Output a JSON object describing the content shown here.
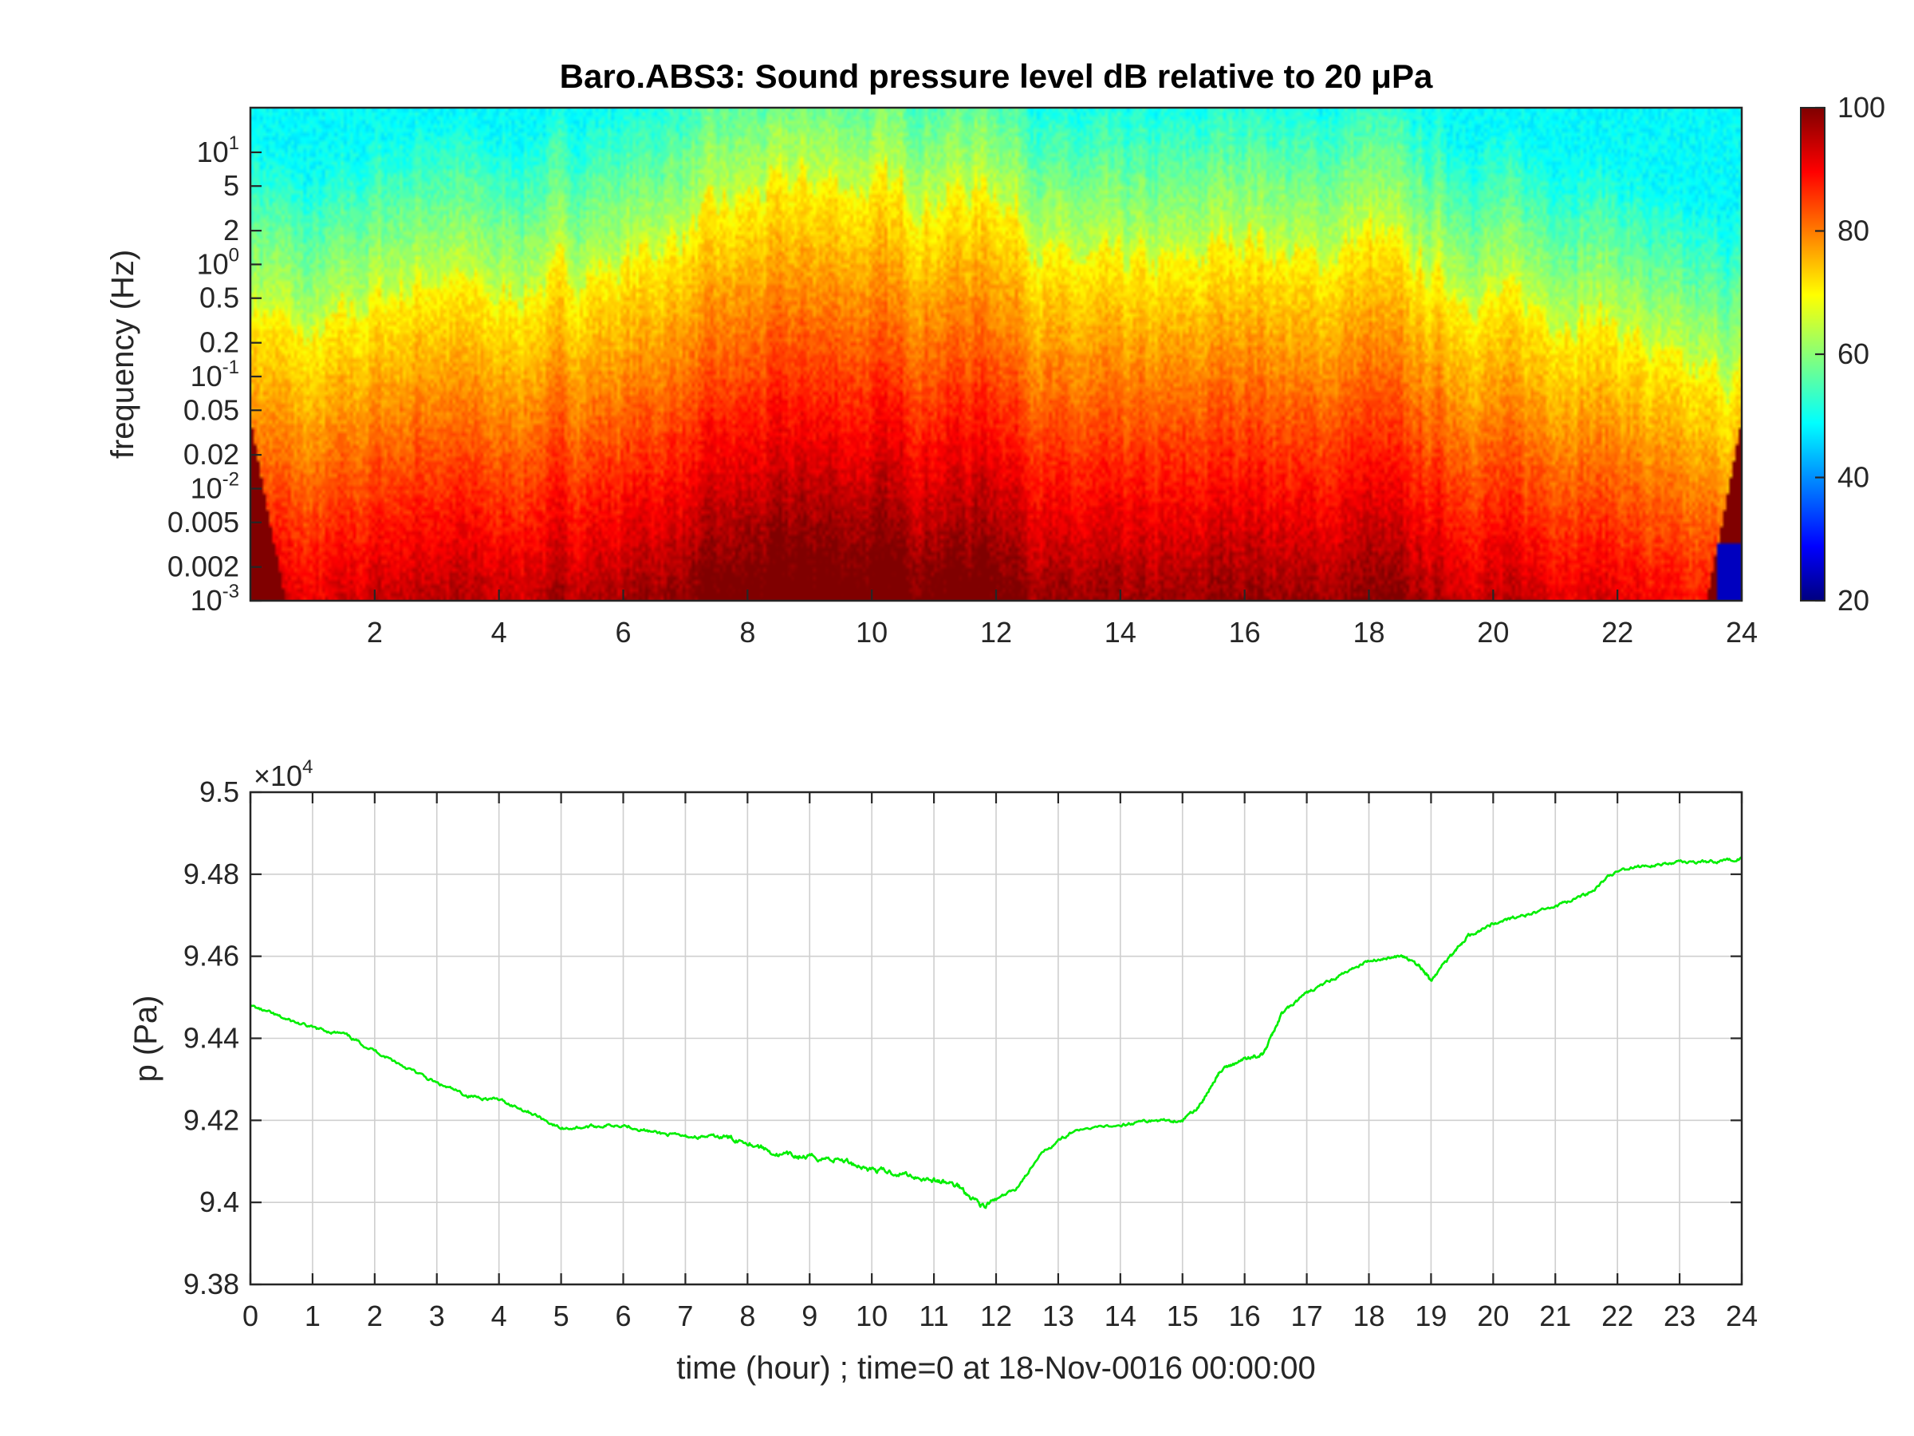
{
  "chart_data": [
    {
      "type": "heatmap",
      "title": "Baro.ABS3: Sound pressure level dB relative to 20 μPa",
      "xlabel": "",
      "ylabel": "frequency (Hz)",
      "x_range": [
        0,
        24
      ],
      "y_scale": "log",
      "y_range": [
        0.001,
        25
      ],
      "x_ticks": [
        "2",
        "4",
        "6",
        "8",
        "10",
        "12",
        "14",
        "16",
        "18",
        "20",
        "22",
        "24"
      ],
      "y_ticks": [
        {
          "base": "10",
          "exp": "1"
        },
        {
          "label": "5"
        },
        {
          "label": "2"
        },
        {
          "base": "10",
          "exp": "0"
        },
        {
          "label": "0.5"
        },
        {
          "label": "0.2"
        },
        {
          "base": "10",
          "exp": "-1"
        },
        {
          "label": "0.05"
        },
        {
          "label": "0.02"
        },
        {
          "base": "10",
          "exp": "-2"
        },
        {
          "label": "0.005"
        },
        {
          "label": "0.002"
        },
        {
          "base": "10",
          "exp": "-3"
        }
      ],
      "colorbar": {
        "colormap": "jet",
        "range": [
          20,
          100
        ],
        "ticks": [
          "20",
          "40",
          "60",
          "80",
          "100"
        ]
      },
      "intensity_profile": {
        "hours": [
          0,
          1,
          2,
          3,
          4,
          5,
          6,
          7,
          8,
          9,
          10,
          11,
          12,
          13,
          14,
          15,
          16,
          17,
          18,
          19,
          20,
          21,
          22,
          23,
          24
        ],
        "upper_yellow_edge_hz": [
          0.5,
          0.2,
          0.5,
          0.8,
          0.5,
          0.8,
          1,
          2,
          4,
          6,
          5,
          4,
          5,
          1,
          1,
          1,
          2,
          1,
          2,
          0.8,
          0.5,
          0.4,
          0.3,
          0.1,
          0.1
        ]
      }
    },
    {
      "type": "line",
      "title": "",
      "xlabel": "time (hour) ; time=0 at 18-Nov-0016 00:00:00",
      "ylabel": "p (Pa)",
      "xlim": [
        0,
        24
      ],
      "ylim": [
        93800,
        95000
      ],
      "x_ticks": [
        "0",
        "1",
        "2",
        "3",
        "4",
        "5",
        "6",
        "7",
        "8",
        "9",
        "10",
        "11",
        "12",
        "13",
        "14",
        "15",
        "16",
        "17",
        "18",
        "19",
        "20",
        "21",
        "22",
        "23",
        "24"
      ],
      "y_ticks": [
        "9.38",
        "9.4",
        "9.42",
        "9.44",
        "9.46",
        "9.48",
        "9.5"
      ],
      "y_exponent": {
        "base": "×10",
        "exp": "4"
      },
      "grid": true,
      "series": [
        {
          "color": "#00ee00",
          "x": [
            0,
            0.5,
            1,
            1.5,
            2,
            2.5,
            3,
            3.5,
            4,
            4.5,
            5,
            5.5,
            6,
            6.5,
            7,
            7.5,
            8,
            8.5,
            9,
            9.5,
            10,
            10.5,
            11,
            11.4,
            11.8,
            12.3,
            12.8,
            13.2,
            14,
            14.5,
            15,
            15.3,
            15.6,
            16,
            16.3,
            16.6,
            17,
            17.5,
            18,
            18.5,
            18.8,
            19,
            19.3,
            19.6,
            20,
            20.5,
            21,
            21.5,
            22,
            22.5,
            23,
            23.5,
            24
          ],
          "y": [
            94480,
            94450,
            94425,
            94410,
            94370,
            94330,
            94290,
            94260,
            94250,
            94220,
            94180,
            94185,
            94190,
            94170,
            94160,
            94160,
            94150,
            94115,
            94110,
            94105,
            94080,
            94070,
            94055,
            94040,
            93990,
            94030,
            94130,
            94170,
            94190,
            94200,
            94200,
            94240,
            94320,
            94350,
            94360,
            94460,
            94510,
            94550,
            94590,
            94600,
            94580,
            94540,
            94600,
            94650,
            94680,
            94700,
            94720,
            94750,
            94810,
            94820,
            94830,
            94830,
            94840
          ]
        }
      ]
    }
  ]
}
